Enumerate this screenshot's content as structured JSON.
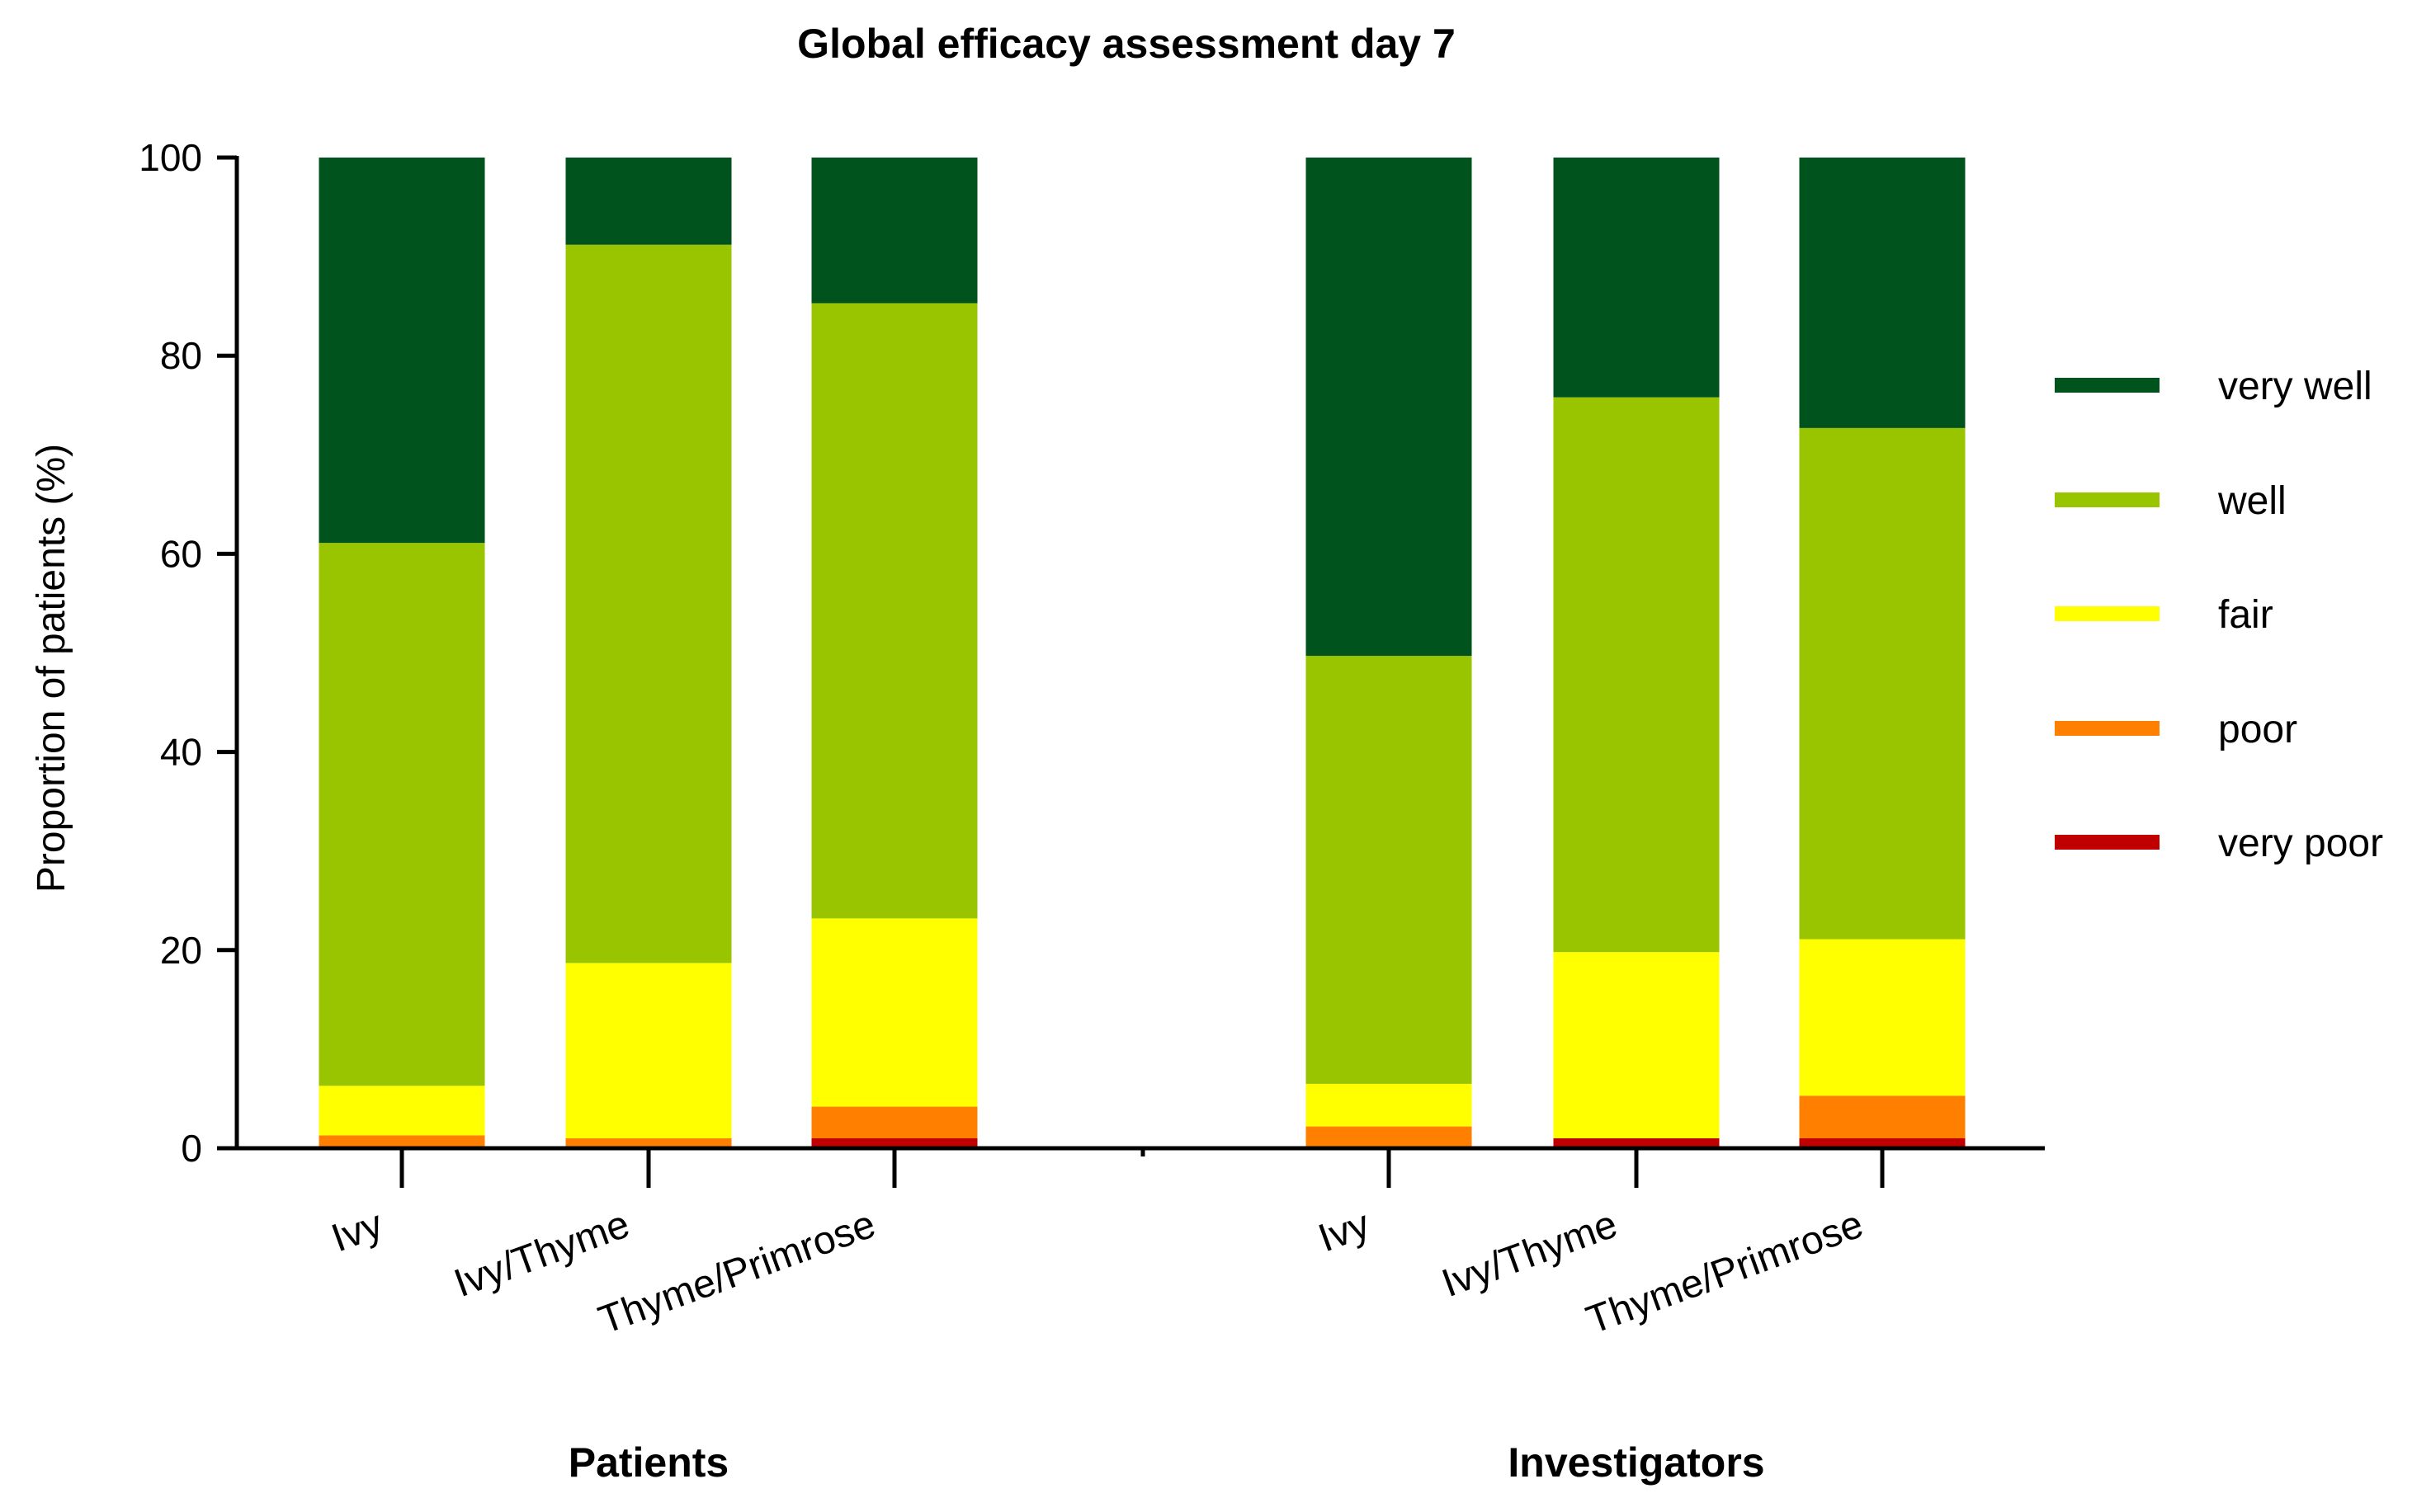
{
  "chart_data": {
    "type": "bar",
    "stacked": true,
    "title": "Global efficacy assessment day 7",
    "xlabel": "",
    "ylabel": "Proportion of patients (%)",
    "ylim": [
      0,
      100
    ],
    "yticks": [
      "0",
      "20",
      "40",
      "60",
      "80",
      "100"
    ],
    "grid": false,
    "legend_position": "right",
    "groups": [
      {
        "label": "Patients",
        "categories": [
          "Ivy",
          "Ivy/Thyme",
          "Thyme/Primrose"
        ]
      },
      {
        "label": "Investigators",
        "categories": [
          "Ivy",
          "Ivy/Thyme",
          "Thyme/Primrose"
        ]
      }
    ],
    "categories": [
      "Ivy",
      "Ivy/Thyme",
      "Thyme/Primrose",
      "Ivy",
      "Ivy/Thyme",
      "Thyme/Primrose"
    ],
    "series": [
      {
        "name": "very poor",
        "color": "#C00000",
        "values": [
          0.0,
          0.0,
          1.0,
          0.0,
          1.0,
          1.0
        ]
      },
      {
        "name": "poor",
        "color": "#FF8000",
        "values": [
          1.3,
          1.0,
          3.2,
          2.2,
          0.0,
          4.3
        ]
      },
      {
        "name": "fair",
        "color": "#FFFF00",
        "values": [
          5.0,
          17.7,
          19.0,
          4.3,
          18.8,
          15.8
        ]
      },
      {
        "name": "well",
        "color": "#99C400",
        "values": [
          54.8,
          72.5,
          62.1,
          43.2,
          56.0,
          51.6
        ]
      },
      {
        "name": "very well",
        "color": "#00531C",
        "values": [
          38.9,
          8.8,
          14.7,
          50.3,
          24.2,
          27.3
        ]
      }
    ]
  }
}
